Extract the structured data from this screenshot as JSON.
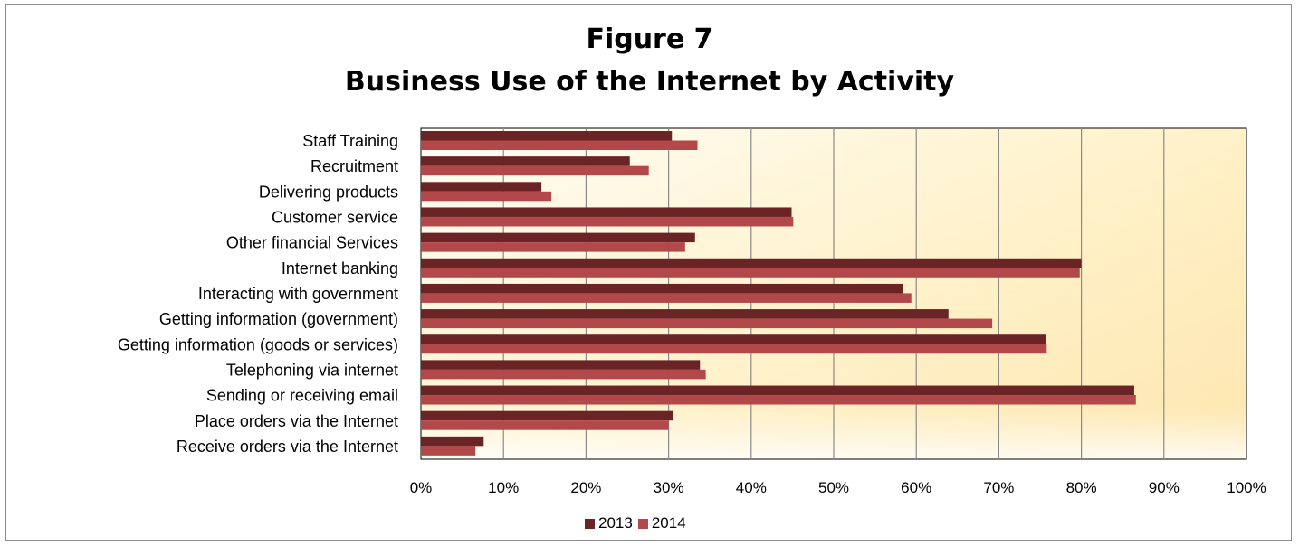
{
  "chart_data": {
    "type": "bar",
    "orientation": "horizontal",
    "title_line1": "Figure 7",
    "title_line2": "Business Use of the Internet by Activity",
    "categories": [
      "Staff Training",
      "Recruitment",
      "Delivering products",
      "Customer service",
      "Other financial Services",
      "Internet banking",
      "Interacting with government",
      "Getting information (government)",
      "Getting information (goods or services)",
      "Telephoning via internet",
      "Sending or receiving email",
      "Place orders via the Internet",
      "Receive orders via  the Internet"
    ],
    "series": [
      {
        "name": "2013",
        "color": "#6b2426",
        "values": [
          30.4,
          25.3,
          14.6,
          44.9,
          33.2,
          80.0,
          58.4,
          63.9,
          75.7,
          33.8,
          86.4,
          30.6,
          7.6
        ]
      },
      {
        "name": "2014",
        "color": "#b3484a",
        "values": [
          33.5,
          27.6,
          15.8,
          45.1,
          32.0,
          79.8,
          59.4,
          69.2,
          75.8,
          34.5,
          86.6,
          30.0,
          6.6
        ]
      }
    ],
    "xlim": [
      0,
      100
    ],
    "x_ticks": [
      "0%",
      "10%",
      "20%",
      "30%",
      "40%",
      "50%",
      "60%",
      "70%",
      "80%",
      "90%",
      "100%"
    ],
    "grid": true,
    "legend_position": "bottom",
    "plot_background": "cream-gradient"
  }
}
